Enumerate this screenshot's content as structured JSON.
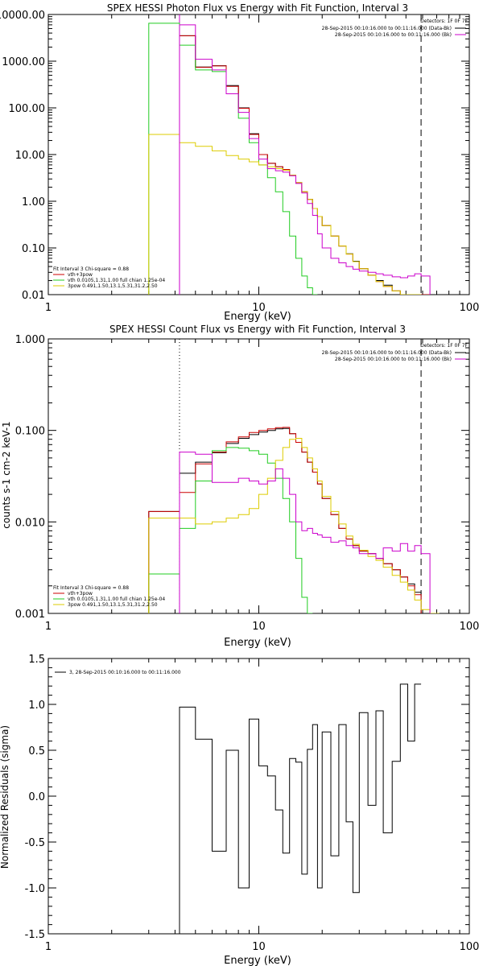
{
  "colors": {
    "black": "#000000",
    "red": "#cc0000",
    "green": "#22cc22",
    "yellow": "#ddcc00",
    "magenta": "#cc00cc"
  },
  "chart_data": [
    {
      "type": "line",
      "title": "SPEX HESSI Photon Flux vs Energy with Fit Function, Interval 3",
      "xlabel": "Energy (keV)",
      "ylabel": "",
      "xscale": "log",
      "yscale": "log",
      "xlim": [
        1,
        100
      ],
      "ylim": [
        0.01,
        10000
      ],
      "xticks": [
        {
          "v": 1,
          "label": "1"
        },
        {
          "v": 10,
          "label": "10"
        },
        {
          "v": 100,
          "label": "100"
        }
      ],
      "yticks": [
        {
          "v": 10000,
          "label": "10000.00"
        },
        {
          "v": 1000,
          "label": "1000.00"
        },
        {
          "v": 100,
          "label": "100.00"
        },
        {
          "v": 10,
          "label": "10.00"
        },
        {
          "v": 1,
          "label": "1.00"
        },
        {
          "v": 0.1,
          "label": "0.10"
        },
        {
          "v": 0.01,
          "label": "0.01"
        }
      ],
      "vlines": [
        {
          "x": 4.2,
          "style": "solid",
          "color": "#cc00cc"
        },
        {
          "x": 59,
          "style": "dashed",
          "color": "#000000"
        }
      ],
      "edges": [
        3,
        4.2,
        5,
        6,
        7,
        8,
        9,
        10,
        11,
        12,
        13,
        14,
        15,
        16,
        17,
        18,
        19,
        20,
        22,
        24,
        26,
        28,
        30,
        33,
        36,
        39,
        43,
        47,
        51,
        55,
        59,
        65,
        72
      ],
      "series": [
        {
          "name": "vth+3pow",
          "color": "#000000",
          "start": 1,
          "values": [
            3500,
            750,
            800,
            300,
            100,
            28,
            10,
            6.5,
            5.5,
            4.8,
            3.6,
            2.5,
            1.6,
            1.1,
            0.7,
            0.47,
            0.3,
            0.18,
            0.11,
            0.075,
            0.052,
            0.036,
            0.026,
            0.02,
            0.016,
            0.012,
            0.01,
            0.0095,
            0.009,
            0.009
          ]
        },
        {
          "name": "vth+3pow",
          "color": "#cc0000",
          "start": 1,
          "values": [
            3500,
            740,
            790,
            290,
            98,
            27,
            10,
            6.5,
            5.5,
            4.8,
            3.6,
            2.5,
            1.6,
            1.1,
            0.7,
            0.47,
            0.3,
            0.18,
            0.11,
            0.074,
            0.051,
            0.036,
            0.026,
            0.019,
            0.015,
            0.012,
            0.0098,
            0.009,
            0.0088,
            0.0088
          ]
        },
        {
          "name": "vth 0.0105,1.31,1.00 full chian 1.25e-04",
          "color": "#22cc22",
          "start": 0,
          "values": [
            6500,
            2200,
            650,
            600,
            200,
            60,
            18,
            6,
            3.2,
            1.6,
            0.6,
            0.18,
            0.06,
            0.025,
            0.014,
            0.009
          ]
        },
        {
          "name": "3pow 0.491,1.50,13.1,5.31,31.2,2.50",
          "color": "#ddcc00",
          "start": 0,
          "values": [
            27,
            18,
            15,
            12,
            9.5,
            8,
            7,
            6,
            5.5,
            5,
            4.6,
            3.6,
            2.5,
            1.6,
            1.1,
            0.7,
            0.47,
            0.3,
            0.18,
            0.11,
            0.074,
            0.051,
            0.036,
            0.026,
            0.019,
            0.015,
            0.012,
            0.0098,
            0.009,
            0.0088
          ]
        },
        {
          "name": "28-Sep-2015 00:10:16.000 to 00:11:16.000 (Bk)",
          "color": "#cc00cc",
          "start": 1,
          "values": [
            6000,
            1100,
            650,
            200,
            80,
            22,
            8,
            5,
            4.5,
            4.2,
            3.5,
            2.4,
            1.5,
            0.9,
            0.5,
            0.2,
            0.1,
            0.06,
            0.048,
            0.04,
            0.035,
            0.032,
            0.03,
            0.028,
            0.026,
            0.024,
            0.023,
            0.025,
            0.028,
            0.025
          ]
        }
      ],
      "legend_tr": {
        "header": "Detectors: 1F 0F 7F",
        "lines": [
          {
            "text": "28-Sep-2015 00:10:16.000 to 00:11:16.000 (Data-Bk)",
            "color": "#000000"
          },
          {
            "text": "28-Sep-2015 00:10:16.000 to 00:11:16.000 (Bk)",
            "color": "#cc00cc"
          }
        ]
      },
      "legend_bl": {
        "header": "Fit Interval 3   Chi-square = 0.88",
        "lines": [
          {
            "text": "vth+3pow",
            "color": "#cc0000"
          },
          {
            "text": "vth 0.0105,1.31,1.00  full chian 1.25e-04",
            "color": "#22cc22"
          },
          {
            "text": "3pow 0.491,1.50,13.1,5.31,31.2,2.50",
            "color": "#ddcc00"
          }
        ]
      }
    },
    {
      "type": "line",
      "title": "SPEX HESSI Count Flux vs Energy with Fit Function, Interval 3",
      "xlabel": "Energy (keV)",
      "ylabel": "counts s-1 cm-2 keV-1",
      "xscale": "log",
      "yscale": "log",
      "xlim": [
        1,
        100
      ],
      "ylim": [
        0.001,
        1
      ],
      "xticks": [
        {
          "v": 1,
          "label": "1"
        },
        {
          "v": 10,
          "label": "10"
        },
        {
          "v": 100,
          "label": "100"
        }
      ],
      "yticks": [
        {
          "v": 1,
          "label": "1.000"
        },
        {
          "v": 0.1,
          "label": "0.100"
        },
        {
          "v": 0.01,
          "label": "0.010"
        },
        {
          "v": 0.001,
          "label": "0.001"
        }
      ],
      "vlines": [
        {
          "x": 4.2,
          "style": "dotted",
          "color": "#000000"
        },
        {
          "x": 59,
          "style": "dashed",
          "color": "#000000"
        }
      ],
      "edges": [
        3,
        4.2,
        5,
        6,
        7,
        8,
        9,
        10,
        11,
        12,
        13,
        14,
        15,
        16,
        17,
        18,
        19,
        20,
        22,
        24,
        26,
        28,
        30,
        33,
        36,
        39,
        43,
        47,
        51,
        55,
        59,
        65,
        72
      ],
      "series": [
        {
          "name": "vth+3pow",
          "color": "#000000",
          "start": 0,
          "values": [
            0.013,
            0.034,
            0.045,
            0.057,
            0.072,
            0.082,
            0.09,
            0.096,
            0.1,
            0.104,
            0.105,
            0.092,
            0.074,
            0.058,
            0.045,
            0.035,
            0.026,
            0.018,
            0.012,
            0.0085,
            0.0065,
            0.0055,
            0.0048,
            0.0045,
            0.004,
            0.0035,
            0.003,
            0.0025,
            0.0021,
            0.0017
          ]
        },
        {
          "name": "vth+3pow",
          "color": "#cc0000",
          "start": 0,
          "values": [
            0.013,
            0.021,
            0.043,
            0.058,
            0.075,
            0.085,
            0.095,
            0.1,
            0.104,
            0.107,
            0.108,
            0.092,
            0.074,
            0.058,
            0.045,
            0.035,
            0.026,
            0.018,
            0.012,
            0.0085,
            0.0065,
            0.0055,
            0.0048,
            0.0045,
            0.004,
            0.0035,
            0.003,
            0.0025,
            0.002,
            0.0016
          ]
        },
        {
          "name": "vth 0.0105,1.31,1.00 full chian 1.25e-04",
          "color": "#22cc22",
          "start": 0,
          "values": [
            0.0027,
            0.0085,
            0.028,
            0.06,
            0.065,
            0.064,
            0.06,
            0.055,
            0.044,
            0.03,
            0.018,
            0.01,
            0.004,
            0.0015,
            0.0009
          ]
        },
        {
          "name": "3pow 0.491,1.50,13.1,5.31,31.2,2.50",
          "color": "#ddcc00",
          "start": 0,
          "values": [
            0.011,
            0.011,
            0.0095,
            0.01,
            0.011,
            0.012,
            0.014,
            0.02,
            0.03,
            0.047,
            0.065,
            0.08,
            0.082,
            0.065,
            0.05,
            0.038,
            0.028,
            0.019,
            0.013,
            0.0095,
            0.007,
            0.0057,
            0.0049,
            0.0042,
            0.0038,
            0.0032,
            0.0026,
            0.0022,
            0.0018,
            0.0014,
            0.0011,
            0.0009
          ]
        },
        {
          "name": "28-Sep-2015 00:10:16.000 to 00:11:16.000 (Bk)",
          "color": "#cc00cc",
          "start": 1,
          "values": [
            0.058,
            0.055,
            0.027,
            0.027,
            0.03,
            0.028,
            0.026,
            0.028,
            0.038,
            0.03,
            0.02,
            0.01,
            0.008,
            0.0085,
            0.0075,
            0.0072,
            0.0068,
            0.006,
            0.0062,
            0.0055,
            0.0052,
            0.0045,
            0.0045,
            0.004,
            0.0052,
            0.0048,
            0.0058,
            0.0048,
            0.0055,
            0.0045
          ]
        }
      ],
      "legend_tr": {
        "header": "Detectors: 1F 0F 7F",
        "lines": [
          {
            "text": "28-Sep-2015 00:10:16.000 to 00:11:16.000 (Data-Bk)",
            "color": "#000000"
          },
          {
            "text": "28-Sep-2015 00:10:16.000 to 00:11:16.000 (Bk)",
            "color": "#cc00cc"
          }
        ]
      },
      "legend_bl": {
        "header": "Fit Interval 3   Chi-square = 0.88",
        "lines": [
          {
            "text": "vth+3pow",
            "color": "#cc0000"
          },
          {
            "text": "vth 0.0105,1.31,1.00  full chian 1.25e-04",
            "color": "#22cc22"
          },
          {
            "text": "3pow 0.491,1.50,13.1,5.31,31.2,2.50",
            "color": "#ddcc00"
          }
        ]
      }
    },
    {
      "type": "line",
      "title": "",
      "xlabel": "Energy (keV)",
      "ylabel": "Normalized Residuals (sigma)",
      "xscale": "log",
      "yscale": "linear",
      "xlim": [
        1,
        100
      ],
      "ylim": [
        -1.5,
        1.5
      ],
      "xticks": [
        {
          "v": 1,
          "label": "1"
        },
        {
          "v": 10,
          "label": "10"
        },
        {
          "v": 100,
          "label": "100"
        }
      ],
      "yticks": [
        {
          "v": 1.5,
          "label": "1.5"
        },
        {
          "v": 1.0,
          "label": "1.0"
        },
        {
          "v": 0.5,
          "label": "0.5"
        },
        {
          "v": 0.0,
          "label": "0.0"
        },
        {
          "v": -0.5,
          "label": "-0.5"
        },
        {
          "v": -1.0,
          "label": "-1.0"
        },
        {
          "v": -1.5,
          "label": "-1.5"
        }
      ],
      "vlines": [],
      "edges": [
        4.2,
        5,
        6,
        7,
        8,
        9,
        10,
        11,
        12,
        13,
        14,
        15,
        16,
        17,
        18,
        19,
        20,
        22,
        24,
        26,
        28,
        30,
        33,
        36,
        39,
        43,
        47,
        51,
        55,
        59
      ],
      "series": [
        {
          "name": "3, 28-Sep-2015 00:10:16.000 to 00:11:16.000",
          "color": "#000000",
          "start": 0,
          "drop_left": true,
          "values": [
            0.97,
            0.62,
            -0.6,
            0.5,
            -1.0,
            0.84,
            0.33,
            0.22,
            -0.15,
            -0.62,
            0.41,
            0.37,
            -0.85,
            0.51,
            0.78,
            -1.0,
            0.7,
            -0.65,
            0.78,
            -0.28,
            -1.05,
            0.91,
            -0.1,
            0.93,
            -0.4,
            0.38,
            1.22,
            0.6,
            1.22
          ]
        }
      ],
      "legend_tl": {
        "lines": [
          {
            "text": "3, 28-Sep-2015 00:10:16.000 to 00:11:16.000",
            "color": "#000000"
          }
        ]
      }
    }
  ]
}
